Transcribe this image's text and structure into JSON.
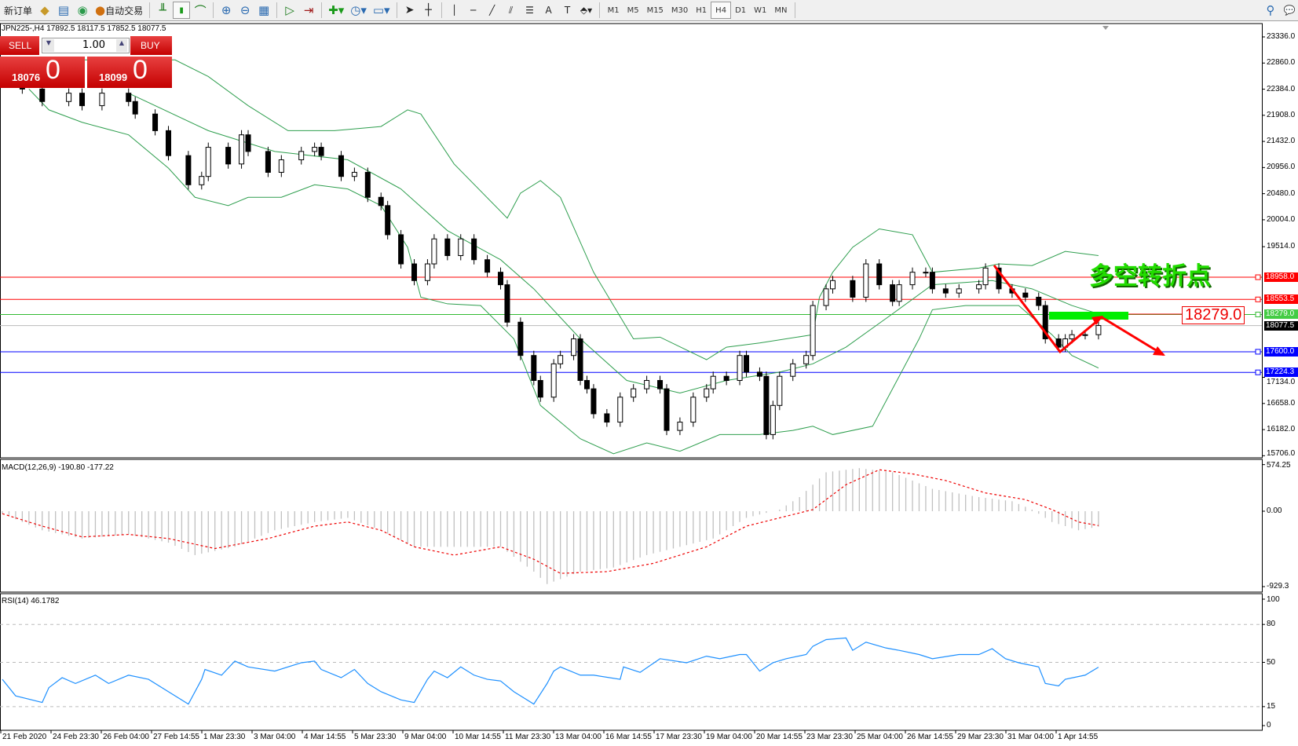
{
  "toolbar": {
    "new_order": "新订单",
    "auto_trading": "自动交易",
    "timeframes": [
      "M1",
      "M5",
      "M15",
      "M30",
      "H1",
      "H4",
      "D1",
      "W1",
      "MN"
    ],
    "active_timeframe": "H4",
    "icons": [
      "market-watch-icon",
      "navigator-icon",
      "signals-icon",
      "bar-chart-icon",
      "candlestick-icon",
      "line-chart-icon",
      "zoom-in-icon",
      "zoom-out-icon",
      "tile-windows-icon",
      "auto-scroll-icon",
      "chart-shift-icon",
      "indicators-icon",
      "periods-icon",
      "templates-icon",
      "cursor-icon",
      "crosshair-icon",
      "vertical-line-icon",
      "horizontal-line-icon",
      "trendline-icon",
      "equidistant-channel-icon",
      "fibonacci-icon",
      "text-icon",
      "text-label-icon",
      "arrows-icon",
      "search-icon",
      "chat-icon"
    ]
  },
  "chart_header": "JPN225-,H4  17892.5 18117.5 17852.5 18077.5",
  "trade_panel": {
    "sell_label": "SELL",
    "buy_label": "BUY",
    "lots": "1.00",
    "sell_price_main": "18076",
    "sell_price_big": "0",
    "buy_price_main": "18099",
    "buy_price_big": "0"
  },
  "annotations": {
    "text": "多空转折点",
    "price_box": "18279.0",
    "colors": {
      "text": "#22dd00",
      "arrow": "#ff0000",
      "zone": "#00ee00"
    }
  },
  "chart_data": {
    "type": "candlestick",
    "symbol": "JPN225-",
    "timeframe": "H4",
    "price_axis_ticks": [
      "23336.0",
      "22860.0",
      "22384.0",
      "21908.0",
      "21432.0",
      "20956.0",
      "20480.0",
      "20004.0",
      "19514.0",
      "17134.0",
      "16658.0",
      "16182.0",
      "15706.0"
    ],
    "ylim": [
      15706,
      23336
    ],
    "time_labels": [
      "21 Feb 2020",
      "24 Feb 23:30",
      "26 Feb 04:00",
      "27 Feb 14:55",
      "1 Mar 23:30",
      "3 Mar 04:00",
      "4 Mar 14:55",
      "5 Mar 23:30",
      "9 Mar 04:00",
      "10 Mar 14:55",
      "11 Mar 23:30",
      "13 Mar 04:00",
      "16 Mar 14:55",
      "17 Mar 23:30",
      "19 Mar 04:00",
      "20 Mar 14:55",
      "23 Mar 23:30",
      "25 Mar 04:00",
      "26 Mar 14:55",
      "29 Mar 23:30",
      "31 Mar 04:00",
      "1 Apr 14:55"
    ],
    "closes": [
      [
        3,
        22386
      ],
      [
        6,
        22159
      ],
      [
        10,
        22311
      ],
      [
        12,
        22083
      ],
      [
        15,
        22311
      ],
      [
        19,
        22159
      ],
      [
        20,
        21931
      ],
      [
        23,
        21628
      ],
      [
        25,
        21173
      ],
      [
        28,
        20642
      ],
      [
        30,
        20794
      ],
      [
        31,
        21325
      ],
      [
        34,
        21021
      ],
      [
        36,
        21552
      ],
      [
        37,
        21249
      ],
      [
        40,
        20869
      ],
      [
        42,
        21097
      ],
      [
        45,
        21249
      ],
      [
        47,
        21325
      ],
      [
        48,
        21173
      ],
      [
        51,
        20794
      ],
      [
        53,
        20869
      ],
      [
        55,
        20414
      ],
      [
        57,
        20263
      ],
      [
        58,
        19732
      ],
      [
        60,
        19201
      ],
      [
        62,
        18897
      ],
      [
        64,
        19201
      ],
      [
        65,
        19656
      ],
      [
        67,
        19352
      ],
      [
        69,
        19656
      ],
      [
        71,
        19277
      ],
      [
        73,
        19049
      ],
      [
        75,
        18821
      ],
      [
        76,
        18139
      ],
      [
        78,
        17532
      ],
      [
        80,
        17077
      ],
      [
        81,
        16773
      ],
      [
        83,
        17380
      ],
      [
        84,
        17532
      ],
      [
        86,
        17835
      ],
      [
        87,
        17077
      ],
      [
        88,
        16925
      ],
      [
        89,
        16470
      ],
      [
        91,
        16318
      ],
      [
        93,
        16773
      ],
      [
        95,
        16925
      ],
      [
        97,
        17077
      ],
      [
        99,
        16925
      ],
      [
        100,
        16167
      ],
      [
        102,
        16318
      ],
      [
        104,
        16773
      ],
      [
        106,
        16925
      ],
      [
        107,
        17153
      ],
      [
        109,
        17077
      ],
      [
        111,
        17532
      ],
      [
        112,
        17229
      ],
      [
        114,
        17153
      ],
      [
        115,
        16091
      ],
      [
        116,
        16622
      ],
      [
        117,
        17153
      ],
      [
        119,
        17380
      ],
      [
        121,
        17532
      ],
      [
        122,
        18442
      ],
      [
        124,
        18746
      ],
      [
        125,
        18897
      ],
      [
        128,
        18594
      ],
      [
        130,
        19201
      ],
      [
        132,
        18821
      ],
      [
        134,
        18518
      ],
      [
        135,
        18821
      ],
      [
        137,
        19049
      ],
      [
        139,
        19049
      ],
      [
        140,
        18746
      ],
      [
        142,
        18670
      ],
      [
        144,
        18746
      ],
      [
        147,
        18821
      ],
      [
        148,
        19125
      ],
      [
        150,
        18746
      ],
      [
        152,
        18670
      ],
      [
        154,
        18594
      ],
      [
        156,
        18442
      ],
      [
        157,
        17835
      ],
      [
        159,
        17684
      ],
      [
        160,
        17835
      ],
      [
        161,
        17911
      ],
      [
        163,
        17911
      ],
      [
        165,
        18077.5
      ]
    ],
    "bollinger": {
      "upper": [
        [
          0,
          22917
        ],
        [
          26,
          22917
        ],
        [
          31,
          22614
        ],
        [
          37,
          22083
        ],
        [
          43,
          21628
        ],
        [
          50,
          21628
        ],
        [
          57,
          21704
        ],
        [
          61,
          22007
        ],
        [
          63,
          21931
        ],
        [
          68,
          21021
        ],
        [
          76,
          20035
        ],
        [
          78,
          20490
        ],
        [
          81,
          20718
        ],
        [
          84,
          20414
        ],
        [
          89,
          19049
        ],
        [
          95,
          17835
        ],
        [
          99,
          17866
        ],
        [
          106,
          17456
        ],
        [
          109,
          17684
        ],
        [
          114,
          17760
        ],
        [
          122,
          17911
        ],
        [
          123,
          18594
        ],
        [
          125,
          19049
        ],
        [
          128,
          19504
        ],
        [
          132,
          19838
        ],
        [
          137,
          19732
        ],
        [
          140,
          19049
        ],
        [
          147,
          19125
        ],
        [
          150,
          19201
        ],
        [
          155,
          19170
        ],
        [
          160,
          19428
        ],
        [
          165,
          19352
        ]
      ],
      "middle": [
        [
          19,
          22311
        ],
        [
          31,
          21628
        ],
        [
          41,
          21249
        ],
        [
          52,
          21097
        ],
        [
          60,
          20566
        ],
        [
          67,
          19807
        ],
        [
          75,
          19277
        ],
        [
          80,
          18746
        ],
        [
          87,
          17835
        ],
        [
          94,
          17077
        ],
        [
          102,
          16849
        ],
        [
          109,
          17077
        ],
        [
          117,
          17229
        ],
        [
          122,
          17380
        ],
        [
          127,
          17684
        ],
        [
          134,
          18291
        ],
        [
          140,
          18821
        ],
        [
          149,
          18897
        ],
        [
          155,
          18746
        ],
        [
          161,
          18442
        ],
        [
          165,
          18291
        ]
      ],
      "lower": [
        [
          4,
          22386
        ],
        [
          7,
          22007
        ],
        [
          12,
          21780
        ],
        [
          19,
          21552
        ],
        [
          25,
          20945
        ],
        [
          29,
          20414
        ],
        [
          34,
          20263
        ],
        [
          37,
          20414
        ],
        [
          42,
          20414
        ],
        [
          47,
          20642
        ],
        [
          52,
          20566
        ],
        [
          57,
          20263
        ],
        [
          61,
          19504
        ],
        [
          63,
          18594
        ],
        [
          67,
          18473
        ],
        [
          72,
          18442
        ],
        [
          77,
          17835
        ],
        [
          81,
          16622
        ],
        [
          87,
          16015
        ],
        [
          92,
          15742
        ],
        [
          97,
          15939
        ],
        [
          102,
          15788
        ],
        [
          108,
          16091
        ],
        [
          114,
          16091
        ],
        [
          119,
          16167
        ],
        [
          122,
          16243
        ],
        [
          125,
          16091
        ],
        [
          131,
          16243
        ],
        [
          134,
          16925
        ],
        [
          138,
          17835
        ],
        [
          140,
          18366
        ],
        [
          145,
          18442
        ],
        [
          153,
          18442
        ],
        [
          158,
          17911
        ],
        [
          161,
          17532
        ],
        [
          165,
          17304
        ]
      ]
    },
    "horizontal_levels": [
      {
        "price": 18958.0,
        "label": "18958.0",
        "color": "#ff0000"
      },
      {
        "price": 18553.5,
        "label": "18553.5",
        "color": "#ff0000"
      },
      {
        "price": 18279.0,
        "label": "18279.0",
        "color": "#33bb33"
      },
      {
        "price": 18077.5,
        "label": "18077.5",
        "color": "#000000"
      },
      {
        "price": 17600.0,
        "label": "17600.0",
        "color": "#0000ff"
      },
      {
        "price": 17224.3,
        "label": "17224.3",
        "color": "#0000ff"
      }
    ],
    "macd": {
      "label": "MACD(12,26,9) -190.80 -177.22",
      "ticks": [
        "574.25",
        "0.00",
        "-929.3"
      ],
      "ylim": [
        -929.3,
        574.25
      ],
      "histogram": [
        [
          0,
          -31
        ],
        [
          6,
          -235
        ],
        [
          12,
          -337
        ],
        [
          19,
          -286
        ],
        [
          25,
          -388
        ],
        [
          29,
          -541
        ],
        [
          35,
          -439
        ],
        [
          41,
          -235
        ],
        [
          47,
          -133
        ],
        [
          52,
          -82
        ],
        [
          57,
          -235
        ],
        [
          62,
          -439
        ],
        [
          68,
          -439
        ],
        [
          75,
          -439
        ],
        [
          80,
          -745
        ],
        [
          82,
          -898
        ],
        [
          87,
          -745
        ],
        [
          92,
          -694
        ],
        [
          97,
          -541
        ],
        [
          102,
          -439
        ],
        [
          107,
          -337
        ],
        [
          112,
          -82
        ],
        [
          117,
          20
        ],
        [
          120,
          174
        ],
        [
          124,
          480
        ],
        [
          129,
          531
        ],
        [
          134,
          480
        ],
        [
          140,
          276
        ],
        [
          147,
          174
        ],
        [
          152,
          123
        ],
        [
          155,
          20
        ],
        [
          158,
          -133
        ],
        [
          162,
          -235
        ],
        [
          165,
          -190.8
        ]
      ],
      "signal": [
        [
          0,
          -31
        ],
        [
          6,
          -184
        ],
        [
          12,
          -317
        ],
        [
          19,
          -286
        ],
        [
          25,
          -337
        ],
        [
          32,
          -460
        ],
        [
          40,
          -337
        ],
        [
          47,
          -184
        ],
        [
          52,
          -133
        ],
        [
          57,
          -235
        ],
        [
          62,
          -439
        ],
        [
          68,
          -541
        ],
        [
          75,
          -439
        ],
        [
          80,
          -592
        ],
        [
          84,
          -766
        ],
        [
          91,
          -745
        ],
        [
          98,
          -643
        ],
        [
          106,
          -439
        ],
        [
          112,
          -184
        ],
        [
          117,
          -82
        ],
        [
          122,
          20
        ],
        [
          127,
          327
        ],
        [
          132,
          511
        ],
        [
          137,
          460
        ],
        [
          142,
          378
        ],
        [
          148,
          225
        ],
        [
          154,
          143
        ],
        [
          158,
          20
        ],
        [
          162,
          -133
        ],
        [
          165,
          -177.22
        ]
      ]
    },
    "rsi": {
      "label": "RSI(14) 46.1782",
      "ticks": [
        "100",
        "80",
        "50",
        "15",
        "0"
      ],
      "levels": [
        80,
        50,
        15
      ],
      "ylim": [
        0,
        100
      ],
      "values": [
        [
          0,
          36.6
        ],
        [
          2,
          23.5
        ],
        [
          6,
          18.3
        ],
        [
          7,
          30
        ],
        [
          9,
          37.9
        ],
        [
          11,
          33.3
        ],
        [
          14,
          39.9
        ],
        [
          16,
          33.3
        ],
        [
          19,
          39.9
        ],
        [
          22,
          36.6
        ],
        [
          25,
          26.8
        ],
        [
          28,
          17
        ],
        [
          30,
          36.6
        ],
        [
          30.5,
          44.4
        ],
        [
          33,
          39.9
        ],
        [
          35,
          51
        ],
        [
          37,
          46.4
        ],
        [
          41,
          43.1
        ],
        [
          45,
          49.7
        ],
        [
          47,
          51
        ],
        [
          48,
          44.4
        ],
        [
          51,
          37.9
        ],
        [
          53,
          44.4
        ],
        [
          55,
          33.3
        ],
        [
          57,
          26.8
        ],
        [
          60,
          20.3
        ],
        [
          62,
          18.3
        ],
        [
          64,
          36.6
        ],
        [
          65,
          43.1
        ],
        [
          67,
          37.9
        ],
        [
          69,
          46.4
        ],
        [
          71,
          39.9
        ],
        [
          73,
          36.6
        ],
        [
          75,
          35.3
        ],
        [
          77,
          26.8
        ],
        [
          80,
          17
        ],
        [
          82,
          33.3
        ],
        [
          83,
          43.1
        ],
        [
          84,
          46.4
        ],
        [
          87,
          39.9
        ],
        [
          89,
          39.9
        ],
        [
          93,
          36.6
        ],
        [
          93.5,
          46.4
        ],
        [
          96,
          42.1
        ],
        [
          99,
          52.9
        ],
        [
          103,
          49.7
        ],
        [
          106,
          54.9
        ],
        [
          108,
          52.9
        ],
        [
          111,
          56.2
        ],
        [
          112,
          56.2
        ],
        [
          114,
          43.1
        ],
        [
          116,
          49.7
        ],
        [
          118,
          52.9
        ],
        [
          121,
          56.2
        ],
        [
          122,
          62.7
        ],
        [
          124,
          68
        ],
        [
          127,
          69.3
        ],
        [
          128,
          59.5
        ],
        [
          130,
          66
        ],
        [
          133,
          61.4
        ],
        [
          135,
          59.5
        ],
        [
          138,
          56.2
        ],
        [
          140,
          52.9
        ],
        [
          144,
          56.2
        ],
        [
          147,
          56.2
        ],
        [
          149,
          60.8
        ],
        [
          151,
          52.9
        ],
        [
          153,
          49.7
        ],
        [
          156,
          46.4
        ],
        [
          157,
          33.3
        ],
        [
          159,
          31.4
        ],
        [
          160,
          36.6
        ],
        [
          163,
          39.9
        ],
        [
          165,
          46.18
        ]
      ]
    }
  }
}
